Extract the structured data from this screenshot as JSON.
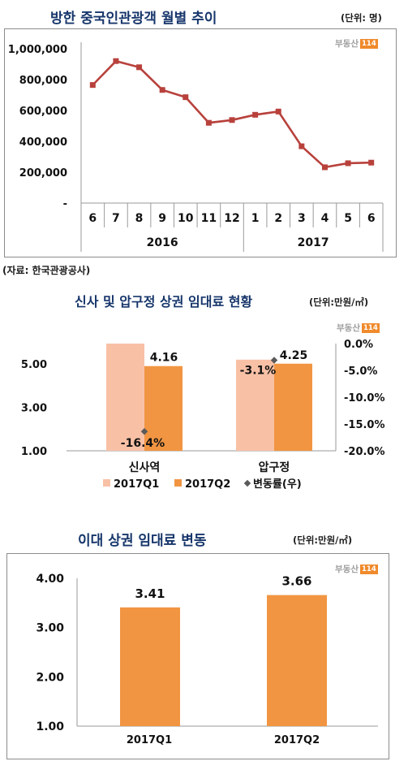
{
  "chart1": {
    "title": "방한 중국인관광객 월별 추이",
    "unit": "(단위: 명)",
    "logo_text": "부동산",
    "logo_box": "114",
    "source": "(자료: 한국관광공사)",
    "color": "#b8413c",
    "chart_data": {
      "type": "line",
      "categories": [
        "6",
        "7",
        "8",
        "9",
        "10",
        "11",
        "12",
        "1",
        "2",
        "3",
        "4",
        "5",
        "6"
      ],
      "year_labels": [
        "2016",
        "2017"
      ],
      "series": [
        {
          "values": [
            765000,
            920000,
            880000,
            733000,
            686000,
            520000,
            538000,
            572000,
            593000,
            368000,
            232000,
            258000,
            262000
          ]
        }
      ],
      "yticks": [
        "1,000,000",
        "800,000",
        "600,000",
        "400,000",
        "200,000",
        "-"
      ],
      "ylim": [
        0,
        1000000
      ]
    }
  },
  "chart2": {
    "title": "신사 및 압구정 상권 임대료 현황",
    "unit": "(단위:만원/㎡)",
    "logo_text": "부동산",
    "logo_box": "114",
    "colors": {
      "q1": "#f8c1a6",
      "q2": "#f19542",
      "marker": "#5a5a5a"
    },
    "chart_data": {
      "type": "bar",
      "categories": [
        "신사역",
        "압구정"
      ],
      "series": [
        {
          "name": "2017Q1",
          "values": [
            5.0,
            4.4
          ]
        },
        {
          "name": "2017Q2",
          "values": [
            4.16,
            4.25
          ]
        },
        {
          "name": "변동률(우)",
          "values": [
            -16.4,
            -3.1
          ]
        }
      ],
      "value_labels": [
        "4.16",
        "4.25"
      ],
      "change_labels": [
        "-16.4%",
        "-3.1%"
      ],
      "yticks_left": [
        "5.00",
        "3.00",
        "1.00"
      ],
      "yticks_right": [
        "0.0%",
        "-5.0%",
        "-10.0%",
        "-15.0%",
        "-20.0%"
      ],
      "ylim_left": [
        1.0,
        5.0
      ],
      "ylim_right": [
        -20.0,
        0.0
      ],
      "legend": [
        "2017Q1",
        "2017Q2",
        "변동률(우)"
      ]
    }
  },
  "chart3": {
    "title": "이대 상권 임대료 변동",
    "unit": "(단위:만원/㎡)",
    "logo_text": "부동산",
    "logo_box": "114",
    "color": "#f19542",
    "chart_data": {
      "type": "bar",
      "categories": [
        "2017Q1",
        "2017Q2"
      ],
      "values": [
        3.41,
        3.66
      ],
      "value_labels": [
        "3.41",
        "3.66"
      ],
      "yticks": [
        "4.00",
        "3.00",
        "2.00",
        "1.00"
      ],
      "ylim": [
        1.0,
        4.0
      ]
    }
  }
}
